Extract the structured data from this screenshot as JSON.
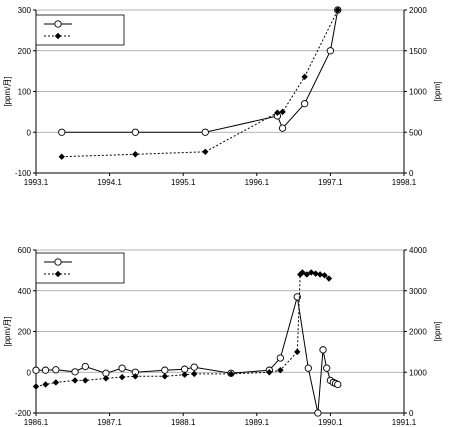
{
  "chart_data": [
    {
      "type": "line",
      "xlim": [
        "1993.1",
        "1998.1"
      ],
      "x_ticks": [
        "1993.1",
        "1994.1",
        "1995.1",
        "1996.1",
        "1997.1",
        "1998.1"
      ],
      "ylim_left": [
        -100,
        300
      ],
      "y_ticks_left": [
        "-100",
        "0",
        "100",
        "200",
        "300"
      ],
      "ylim_right": [
        0,
        2000
      ],
      "y_ticks_right": [
        "0",
        "500",
        "1000",
        "1500",
        "2000"
      ],
      "ylabel_left": "[ppm/月]",
      "ylabel_right": "[ppm]",
      "grid": "horizontal",
      "legend_position": "top-left",
      "series": [
        {
          "axis": "left",
          "style": "solid-circle",
          "x": [
            1993.45,
            1994.45,
            1995.4,
            1996.38,
            1996.45,
            1996.75,
            1997.1,
            1997.2
          ],
          "y": [
            0,
            0,
            0,
            40,
            10,
            70,
            200,
            300
          ]
        },
        {
          "axis": "right",
          "style": "dashed-diamond",
          "x": [
            1993.45,
            1994.45,
            1995.4,
            1996.38,
            1996.45,
            1996.75,
            1997.2
          ],
          "y": [
            200,
            230,
            260,
            740,
            750,
            1180,
            2000
          ]
        }
      ]
    },
    {
      "type": "line",
      "xlim": [
        "1986.1",
        "1991.1"
      ],
      "x_ticks": [
        "1986.1",
        "1987.1",
        "1988.1",
        "1989.1",
        "1990.1",
        "1991.1"
      ],
      "ylim_left": [
        -200,
        600
      ],
      "y_ticks_left": [
        "-200",
        "0",
        "200",
        "400",
        "600"
      ],
      "ylim_right": [
        0,
        4000
      ],
      "y_ticks_right": [
        "0",
        "1000",
        "2000",
        "3000",
        "4000"
      ],
      "ylabel_left": "[ppm/月]",
      "ylabel_right": "[ppm]",
      "grid": "horizontal",
      "legend_position": "top-left",
      "series": [
        {
          "axis": "left",
          "style": "solid-circle",
          "x": [
            1986.1,
            1986.23,
            1986.37,
            1986.63,
            1986.77,
            1987.05,
            1987.27,
            1987.45,
            1987.85,
            1988.12,
            1988.25,
            1988.75,
            1989.27,
            1989.42,
            1989.65,
            1989.8,
            1989.93,
            1990.0,
            1990.05,
            1990.1,
            1990.14,
            1990.17,
            1990.2
          ],
          "y": [
            10,
            10,
            12,
            2,
            28,
            -5,
            20,
            0,
            10,
            15,
            25,
            -5,
            10,
            70,
            370,
            20,
            -200,
            110,
            20,
            -40,
            -50,
            -55,
            -60
          ]
        },
        {
          "axis": "right",
          "style": "dashed-diamond",
          "x": [
            1986.1,
            1986.23,
            1986.37,
            1986.63,
            1986.77,
            1987.05,
            1987.27,
            1987.45,
            1987.85,
            1988.12,
            1988.25,
            1988.75,
            1989.27,
            1989.42,
            1989.65,
            1989.69,
            1989.72,
            1989.78,
            1989.84,
            1989.9,
            1989.96,
            1990.02,
            1990.08
          ],
          "y": [
            650,
            700,
            750,
            800,
            800,
            850,
            880,
            900,
            900,
            940,
            960,
            960,
            1000,
            1050,
            1500,
            3400,
            3450,
            3400,
            3450,
            3420,
            3400,
            3380,
            3300
          ]
        }
      ]
    }
  ]
}
